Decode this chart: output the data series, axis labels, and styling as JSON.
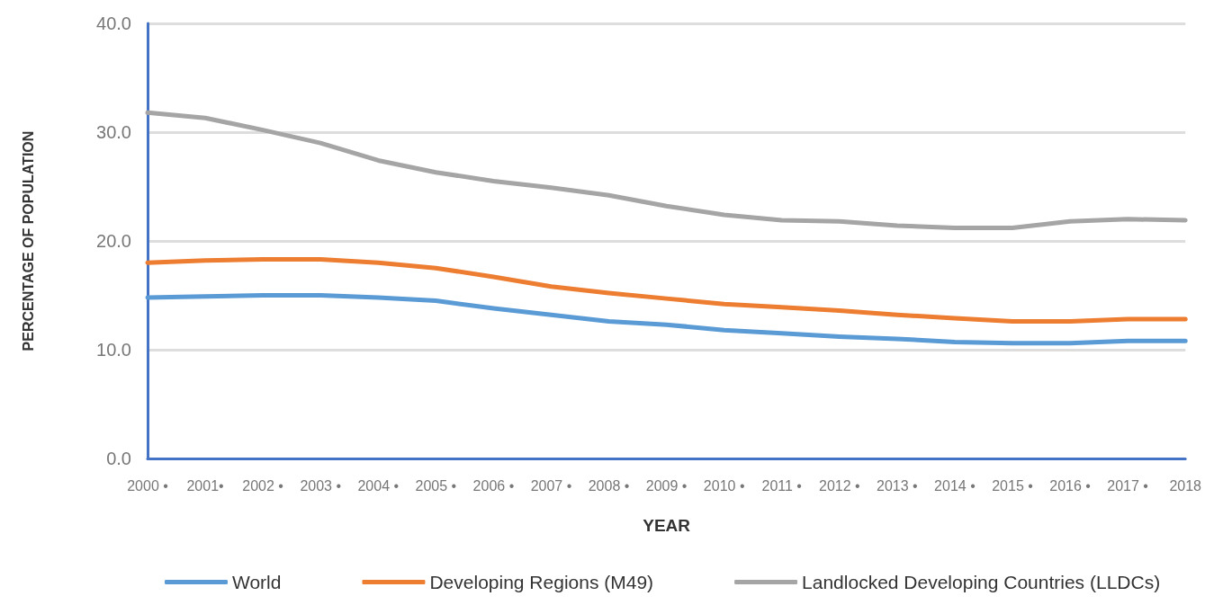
{
  "chart_data": {
    "type": "line",
    "xlabel": "YEAR",
    "ylabel": "PERCENTAGE OF POPULATION",
    "categories": [
      "2000 •",
      "2001•",
      "2002 •",
      "2003 •",
      "2004 •",
      "2005 •",
      "2006 •",
      "2007 •",
      "2008 •",
      "2009 •",
      "2010 •",
      "2011 •",
      "2012 •",
      "2013 •",
      "2014 •",
      "2015 •",
      "2016 •",
      "2017 •",
      "2018"
    ],
    "series": [
      {
        "name": "World",
        "color": "#5b9bd5",
        "values": [
          14.8,
          14.9,
          15.0,
          15.0,
          14.8,
          14.5,
          13.8,
          13.2,
          12.6,
          12.3,
          11.8,
          11.5,
          11.2,
          11.0,
          10.7,
          10.6,
          10.6,
          10.8,
          10.8
        ]
      },
      {
        "name": "Developing Regions (M49)",
        "color": "#ed7d31",
        "values": [
          18.0,
          18.2,
          18.3,
          18.3,
          18.0,
          17.5,
          16.7,
          15.8,
          15.2,
          14.7,
          14.2,
          13.9,
          13.6,
          13.2,
          12.9,
          12.6,
          12.6,
          12.8,
          12.8
        ]
      },
      {
        "name": "Landlocked Developing Countries (LLDCs)",
        "color": "#a5a5a5",
        "values": [
          31.8,
          31.3,
          30.2,
          29.0,
          27.4,
          26.3,
          25.5,
          24.9,
          24.2,
          23.2,
          22.4,
          21.9,
          21.8,
          21.4,
          21.2,
          21.2,
          21.8,
          22.0,
          21.9
        ]
      }
    ],
    "ylim": [
      0,
      40
    ],
    "yticks": [
      {
        "value": 0,
        "label": "0.0"
      },
      {
        "value": 10,
        "label": "10.0"
      },
      {
        "value": 20,
        "label": "20.0"
      },
      {
        "value": 30,
        "label": "30.0"
      },
      {
        "value": 40,
        "label": "40.0"
      }
    ],
    "grid": "y",
    "legend": "bottom",
    "marker": "none",
    "line_style": "solid"
  }
}
